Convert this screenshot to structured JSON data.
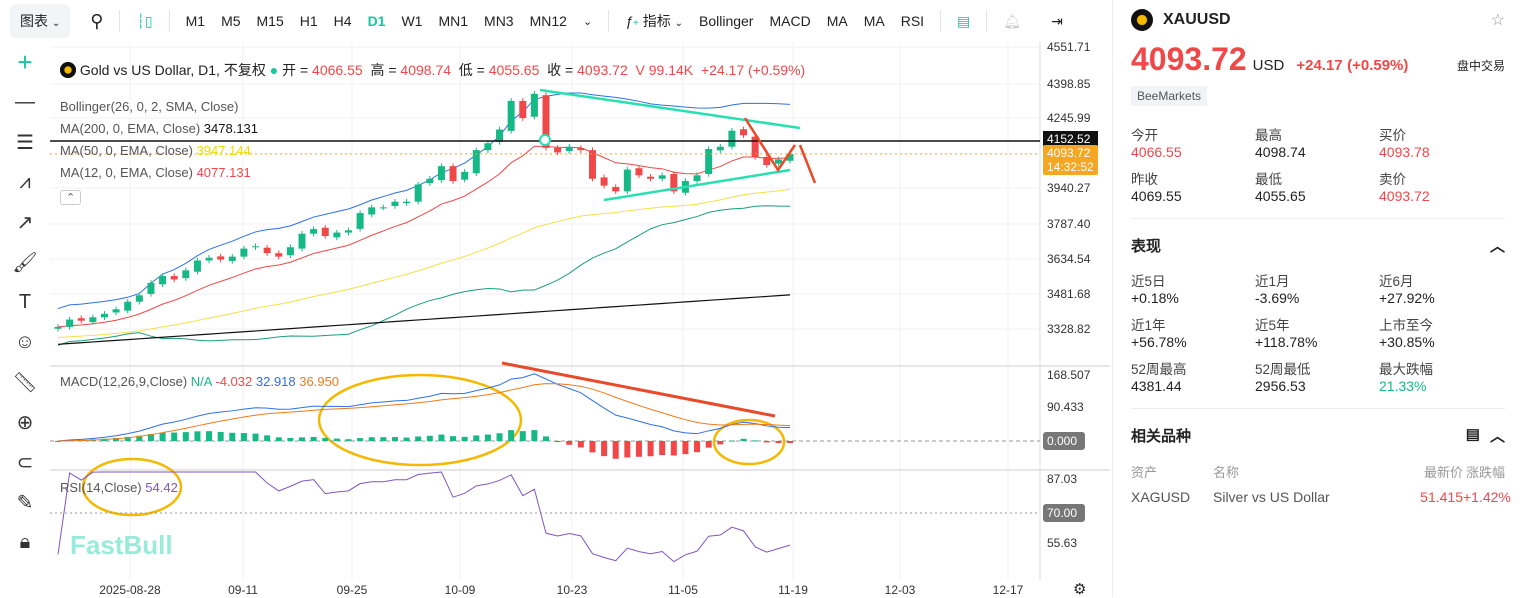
{
  "toolbar": {
    "chart_menu": "图表",
    "timeframes": [
      "M1",
      "M5",
      "M15",
      "H1",
      "H4",
      "D1",
      "W1",
      "MN1",
      "MN3",
      "MN12"
    ],
    "active": "D1",
    "indicators_label": "指标",
    "quick": [
      "Bollinger",
      "MACD",
      "MA",
      "MA",
      "RSI"
    ]
  },
  "legend": {
    "title": "Gold vs US Dollar, D1, 不复权",
    "open_label": "开",
    "open": "4066.55",
    "high_label": "高",
    "high": "4098.74",
    "low_label": "低",
    "low": "4055.65",
    "close_label": "收",
    "close": "4093.72",
    "volume": "V 99.14K",
    "change": "+24.17 (+0.59%)",
    "bollinger": "Bollinger(26, 0, 2, SMA, Close)",
    "ma200": "MA(200, 0, EMA, Close)",
    "ma200_val": "3478.131",
    "ma50": "MA(50, 0, EMA, Close)",
    "ma50_val": "3947.144",
    "ma12": "MA(12, 0, EMA, Close)",
    "ma12_val": "4077.131",
    "macd": "MACD(12,26,9,Close)",
    "macd_na": "N/A",
    "macd_v1": "-4.032",
    "macd_v2": "32.918",
    "macd_v3": "36.950",
    "rsi": "RSI(14,Close)",
    "rsi_val": "54.42"
  },
  "price_axis": [
    "4551.71",
    "4398.85",
    "4245.99",
    "3940.27",
    "3787.40",
    "3634.54",
    "3481.68",
    "3328.82"
  ],
  "price_tags": {
    "line": "4152.52",
    "last": "4093.72",
    "countdown": "14:32:52"
  },
  "macd_axis": [
    "168.507",
    "90.433"
  ],
  "macd_zero": "0.000",
  "rsi_axis": [
    "87.03",
    "55.63"
  ],
  "rsi_level": "70.00",
  "date_axis": [
    "2025-08-28",
    "09-11",
    "09-25",
    "10-09",
    "10-23",
    "11-05",
    "11-19",
    "12-03",
    "12-17"
  ],
  "watermark": "FastBull",
  "colors": {
    "up": "#16b886",
    "down": "#f04848",
    "ma12": "#f04848",
    "ma50": "#f5e04a",
    "bb": "#2f6fe8",
    "accent": "#16c7a0",
    "annot": "#f5b800"
  },
  "ohlc_closes": [
    3338,
    3370,
    3365,
    3380,
    3395,
    3415,
    3448,
    3476,
    3530,
    3560,
    3545,
    3585,
    3628,
    3640,
    3632,
    3645,
    3680,
    3690,
    3660,
    3645,
    3686,
    3745,
    3765,
    3735,
    3750,
    3760,
    3835,
    3860,
    3860,
    3885,
    3885,
    3960,
    3985,
    4040,
    3975,
    4015,
    4110,
    4140,
    4200,
    4325,
    4250,
    4356,
    4120,
    4100,
    4125,
    4110,
    3985,
    3955,
    3930,
    4025,
    4000,
    3985,
    4000,
    3930,
    3975,
    4000,
    4115,
    4125,
    4195,
    4175,
    4080,
    4045,
    4069.55,
    4093.72
  ],
  "panel": {
    "symbol": "XAUUSD",
    "price": "4093.72",
    "currency": "USD",
    "change": "+24.17",
    "change_pct": "(+0.59%)",
    "status": "盘中交易",
    "broker": "BeeMarkets",
    "quote": [
      {
        "l": "今开",
        "v": "4066.55",
        "c": "red"
      },
      {
        "l": "最高",
        "v": "4098.74",
        "c": ""
      },
      {
        "l": "买价",
        "v": "4093.78",
        "c": "red"
      },
      {
        "l": "昨收",
        "v": "4069.55",
        "c": ""
      },
      {
        "l": "最低",
        "v": "4055.65",
        "c": ""
      },
      {
        "l": "卖价",
        "v": "4093.72",
        "c": "red"
      }
    ],
    "perf_title": "表现",
    "perf": [
      {
        "l": "近5日",
        "v": "+0.18%"
      },
      {
        "l": "近1月",
        "v": "-3.69%"
      },
      {
        "l": "近6月",
        "v": "+27.92%"
      },
      {
        "l": "近1年",
        "v": "+56.78%"
      },
      {
        "l": "近5年",
        "v": "+118.78%"
      },
      {
        "l": "上市至今",
        "v": "+30.85%"
      },
      {
        "l": "52周最高",
        "v": "4381.44"
      },
      {
        "l": "52周最低",
        "v": "2956.53"
      },
      {
        "l": "最大跌幅",
        "v": "21.33%"
      }
    ],
    "related_title": "相关品种",
    "related_headers": [
      "资产",
      "名称",
      "最新价",
      "涨跌幅"
    ],
    "related": [
      {
        "asset": "XAGUSD",
        "name": "Silver vs US Dollar",
        "price": "51.415",
        "change": "+1.42%"
      }
    ]
  }
}
